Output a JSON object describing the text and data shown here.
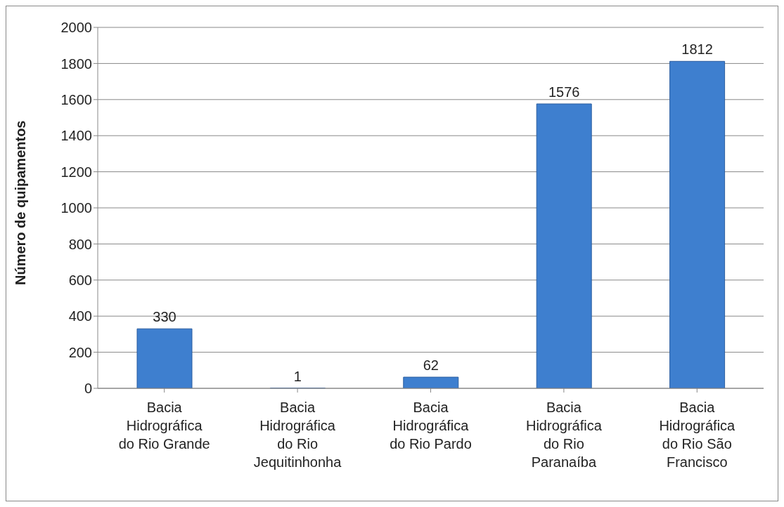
{
  "chart_data": {
    "type": "bar",
    "ylabel": "Número de quipamentos",
    "categories": [
      "Bacia Hidrográfica do Rio Grande",
      "Bacia Hidrográfica do Rio Jequitinhonha",
      "Bacia Hidrográfica do Rio Pardo",
      "Bacia Hidrográfica do Rio Paranaíba",
      "Bacia Hidrográfica do Rio São Francisco"
    ],
    "values": [
      330,
      1,
      62,
      1576,
      1812
    ],
    "color": "#3e7fcf",
    "ylim": [
      0,
      2000
    ],
    "yticks": [
      0,
      200,
      400,
      600,
      800,
      1000,
      1200,
      1400,
      1600,
      1800,
      2000
    ],
    "grid": "y",
    "data_labels": true
  }
}
